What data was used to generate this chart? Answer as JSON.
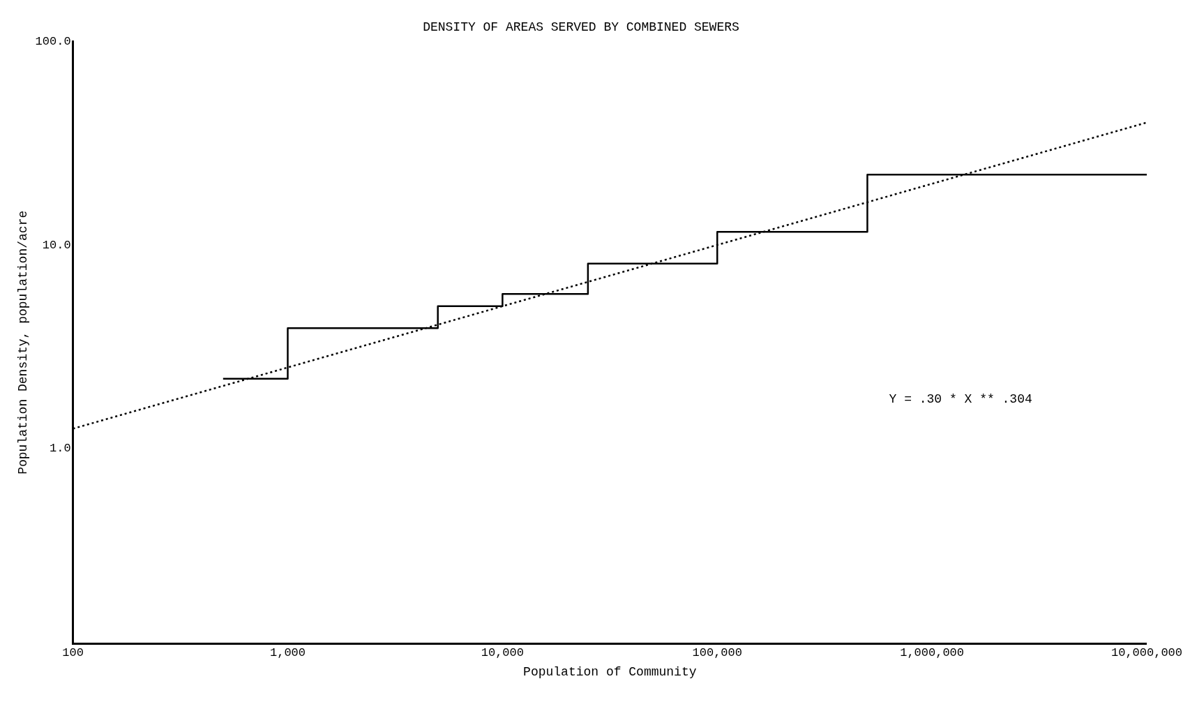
{
  "chart_data": {
    "type": "step",
    "title": "DENSITY OF AREAS SERVED BY COMBINED SEWERS",
    "xlabel": "Population of Community",
    "ylabel": "Population Density, population/acre",
    "log": "xy",
    "grid": false,
    "legend": false,
    "marker": "none",
    "xlim": [
      100,
      10000000
    ],
    "xticks": [
      {
        "value": 100,
        "label": "100"
      },
      {
        "value": 1000,
        "label": "1,000"
      },
      {
        "value": 10000,
        "label": "10,000"
      },
      {
        "value": 100000,
        "label": "100,000"
      },
      {
        "value": 1000000,
        "label": "1,000,000"
      },
      {
        "value": 10000000,
        "label": "10,000,000"
      }
    ],
    "ylim": [
      0.11,
      100
    ],
    "yticks": [
      {
        "value": 1,
        "label": "1.0"
      },
      {
        "value": 10,
        "label": "10.0"
      },
      {
        "value": 100,
        "label": "100.0"
      }
    ],
    "series": [
      {
        "type": "step",
        "color": "#000000",
        "line_style": "solid",
        "x": [
          500,
          1000,
          5000,
          10000,
          25000,
          100000,
          500000,
          10000000
        ],
        "values": [
          2.2,
          3.9,
          5.0,
          5.75,
          8.1,
          11.6,
          22.2,
          22
        ]
      },
      {
        "type": "line",
        "color": "#000000",
        "line_style": "dotted",
        "x": [
          100,
          10000000
        ],
        "values": [
          1.25,
          40
        ]
      }
    ],
    "annotations": [
      "Y = .30 * X ** .304"
    ]
  }
}
